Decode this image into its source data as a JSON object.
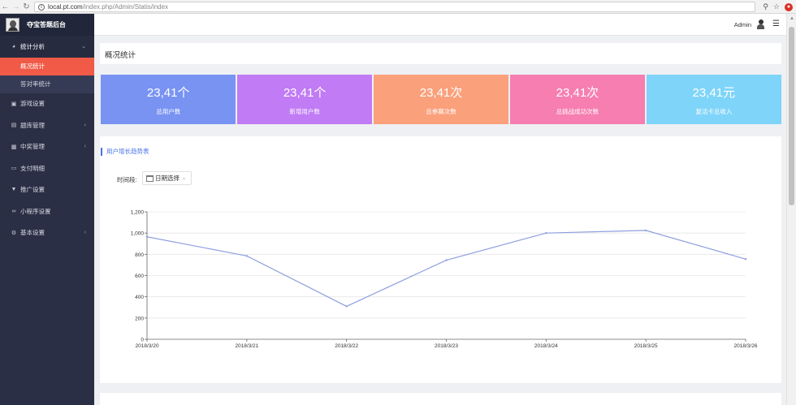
{
  "browser": {
    "url_host": "local.pt.com",
    "url_path": "/index.php/Admin/Statis/index"
  },
  "sidebar": {
    "brand": "夺宝答题后台",
    "items": [
      {
        "label": "统计分析",
        "icon": "pie-chart-icon",
        "open": true
      },
      {
        "label": "游戏设置",
        "icon": "gamepad-icon"
      },
      {
        "label": "题库管理",
        "icon": "list-icon"
      },
      {
        "label": "中奖管理",
        "icon": "gift-icon"
      },
      {
        "label": "支付明细",
        "icon": "credit-card-icon"
      },
      {
        "label": "推广设置",
        "icon": "bullhorn-icon"
      },
      {
        "label": "小程序设置",
        "icon": "link-icon"
      },
      {
        "label": "基本设置",
        "icon": "gear-icon"
      }
    ],
    "sub_items": [
      {
        "label": "概况统计",
        "active": true
      },
      {
        "label": "答对率统计",
        "active": false
      }
    ]
  },
  "header": {
    "user": "Admin"
  },
  "page": {
    "title": "概况统计"
  },
  "stats": [
    {
      "value": "23,41个",
      "label": "总用户数",
      "color": "#7893f2"
    },
    {
      "value": "23,41个",
      "label": "新增用户数",
      "color": "#c07bf5"
    },
    {
      "value": "23,41次",
      "label": "总参赛次数",
      "color": "#faa07b"
    },
    {
      "value": "23,41次",
      "label": "总挑战成功次数",
      "color": "#f67eb1"
    },
    {
      "value": "23,41元",
      "label": "复活卡总收入",
      "color": "#7fd4f9"
    }
  ],
  "chart_section": {
    "title": "用户增长趋势表",
    "filter_label": "时间段:",
    "date_picker_label": "日期选择"
  },
  "chart_data": {
    "type": "line",
    "x": [
      "2018/3/20",
      "2018/3/21",
      "2018/3/22",
      "2018/3/23",
      "2018/3/24",
      "2018/3/25",
      "2018/3/26"
    ],
    "series": [
      {
        "values": [
          965,
          785,
          310,
          745,
          1000,
          1025,
          755
        ],
        "color": "#8f9fe0"
      }
    ],
    "y_ticks": [
      "0",
      "200",
      "400",
      "600",
      "800",
      "1,000",
      "1,200"
    ],
    "ylim": [
      0,
      1200
    ],
    "grid": true,
    "legend": "none"
  }
}
